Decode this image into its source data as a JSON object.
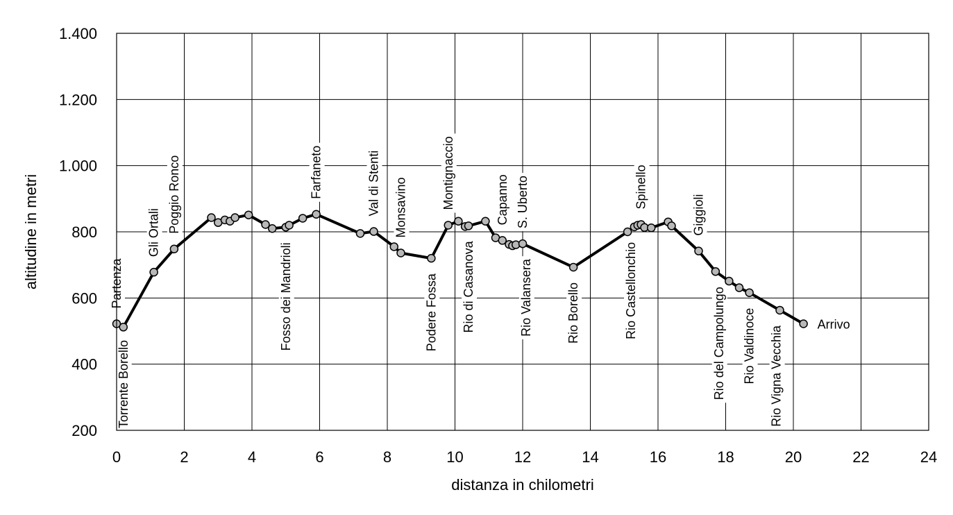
{
  "chart_data": {
    "type": "line",
    "title": "",
    "xlabel": "distanza in chilometri",
    "ylabel": "altitudine  in metri",
    "xlim": [
      0,
      24
    ],
    "ylim": [
      200,
      1400
    ],
    "x_ticks": [
      "0",
      "2",
      "4",
      "6",
      "8",
      "10",
      "12",
      "14",
      "16",
      "18",
      "20",
      "22",
      "24"
    ],
    "y_ticks": [
      "200",
      "400",
      "600",
      "800",
      "1.000",
      "1.200",
      "1.400"
    ],
    "x_tick_values": [
      0,
      2,
      4,
      6,
      8,
      10,
      12,
      14,
      16,
      18,
      20,
      22,
      24
    ],
    "y_tick_values": [
      200,
      400,
      600,
      800,
      1000,
      1200,
      1400
    ],
    "grid": true,
    "series": [
      {
        "points": [
          {
            "x": 0.0,
            "y": 522
          },
          {
            "x": 0.2,
            "y": 512
          },
          {
            "x": 1.1,
            "y": 678
          },
          {
            "x": 1.7,
            "y": 748
          },
          {
            "x": 2.8,
            "y": 843
          },
          {
            "x": 3.0,
            "y": 828
          },
          {
            "x": 3.2,
            "y": 836
          },
          {
            "x": 3.35,
            "y": 832
          },
          {
            "x": 3.5,
            "y": 843
          },
          {
            "x": 3.9,
            "y": 851
          },
          {
            "x": 4.4,
            "y": 822
          },
          {
            "x": 4.6,
            "y": 810
          },
          {
            "x": 5.0,
            "y": 814
          },
          {
            "x": 5.1,
            "y": 820
          },
          {
            "x": 5.5,
            "y": 841
          },
          {
            "x": 5.9,
            "y": 853
          },
          {
            "x": 7.2,
            "y": 795
          },
          {
            "x": 7.6,
            "y": 801
          },
          {
            "x": 8.2,
            "y": 755
          },
          {
            "x": 8.4,
            "y": 736
          },
          {
            "x": 9.3,
            "y": 720
          },
          {
            "x": 9.8,
            "y": 820
          },
          {
            "x": 10.1,
            "y": 832
          },
          {
            "x": 10.3,
            "y": 816
          },
          {
            "x": 10.4,
            "y": 818
          },
          {
            "x": 10.9,
            "y": 832
          },
          {
            "x": 11.2,
            "y": 782
          },
          {
            "x": 11.4,
            "y": 774
          },
          {
            "x": 11.6,
            "y": 762
          },
          {
            "x": 11.7,
            "y": 758
          },
          {
            "x": 11.8,
            "y": 761
          },
          {
            "x": 12.0,
            "y": 764
          },
          {
            "x": 13.5,
            "y": 693
          },
          {
            "x": 15.1,
            "y": 800
          },
          {
            "x": 15.3,
            "y": 815
          },
          {
            "x": 15.4,
            "y": 820
          },
          {
            "x": 15.5,
            "y": 822
          },
          {
            "x": 15.6,
            "y": 813
          },
          {
            "x": 15.8,
            "y": 812
          },
          {
            "x": 16.3,
            "y": 830
          },
          {
            "x": 16.4,
            "y": 818
          },
          {
            "x": 17.2,
            "y": 742
          },
          {
            "x": 17.7,
            "y": 680
          },
          {
            "x": 18.1,
            "y": 651
          },
          {
            "x": 18.4,
            "y": 631
          },
          {
            "x": 18.7,
            "y": 616
          },
          {
            "x": 19.6,
            "y": 563
          },
          {
            "x": 20.3,
            "y": 522
          }
        ]
      }
    ],
    "waypoints": [
      {
        "name": "Partenza",
        "x": 0.0,
        "y": 522,
        "side": "above"
      },
      {
        "name": "Torrente Borello",
        "x": 0.2,
        "y": 512,
        "side": "below"
      },
      {
        "name": "Gli Ortali",
        "x": 1.1,
        "y": 678,
        "side": "above"
      },
      {
        "name": "Poggio Ronco",
        "x": 1.7,
        "y": 748,
        "side": "above"
      },
      {
        "name": "Fosso dei Mandrioli",
        "x": 5.0,
        "y": 814,
        "side": "below"
      },
      {
        "name": "Farfaneto",
        "x": 5.9,
        "y": 853,
        "side": "above"
      },
      {
        "name": "Val di Stenti",
        "x": 7.6,
        "y": 801,
        "side": "above"
      },
      {
        "name": "Monsavino",
        "x": 8.4,
        "y": 736,
        "side": "above"
      },
      {
        "name": "Podere Fossa",
        "x": 9.3,
        "y": 720,
        "side": "below"
      },
      {
        "name": "Montignaccio",
        "x": 9.8,
        "y": 820,
        "side": "above"
      },
      {
        "name": "Rio di Casanova",
        "x": 10.4,
        "y": 818,
        "side": "below"
      },
      {
        "name": "Capanno",
        "x": 11.4,
        "y": 774,
        "side": "above"
      },
      {
        "name": "S. Uberto",
        "x": 12.0,
        "y": 764,
        "side": "above"
      },
      {
        "name": "Rio Valansera",
        "x": 12.1,
        "y": 764,
        "side": "below"
      },
      {
        "name": "Rio Borello",
        "x": 13.5,
        "y": 693,
        "side": "below"
      },
      {
        "name": "Rio Castellonchio",
        "x": 15.2,
        "y": 815,
        "side": "below"
      },
      {
        "name": "Spinello",
        "x": 15.5,
        "y": 822,
        "side": "above"
      },
      {
        "name": "Giggioli",
        "x": 17.2,
        "y": 742,
        "side": "above"
      },
      {
        "name": "Rio del Campolungo",
        "x": 17.8,
        "y": 680,
        "side": "below"
      },
      {
        "name": "Rio Valdinoce",
        "x": 18.7,
        "y": 616,
        "side": "below"
      },
      {
        "name": "Rio Vigna Vecchia",
        "x": 19.5,
        "y": 563,
        "side": "below"
      },
      {
        "name": "Arrivo",
        "x": 20.3,
        "y": 522,
        "side": "right"
      }
    ]
  }
}
